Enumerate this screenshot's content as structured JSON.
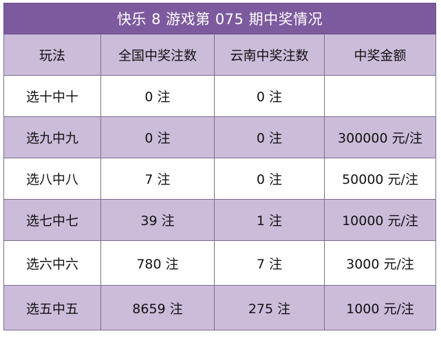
{
  "title": "快乐 8 游戏第 075 期中奖情况",
  "headers": [
    "玩法",
    "全国中奖注数",
    "云南中奖注数",
    "中奖金额"
  ],
  "rows": [
    {
      "play": "选十中十",
      "national": "0 注",
      "yunnan": "0 注",
      "amount": ""
    },
    {
      "play": "选九中九",
      "national": "0 注",
      "yunnan": "0 注",
      "amount": "300000 元/注"
    },
    {
      "play": "选八中八",
      "national": "7 注",
      "yunnan": "0 注",
      "amount": "50000 元/注"
    },
    {
      "play": "选七中七",
      "national": "39 注",
      "yunnan": "1 注",
      "amount": "10000 元/注"
    },
    {
      "play": "选六中六",
      "national": "780 注",
      "yunnan": "7 注",
      "amount": "3000 元/注"
    },
    {
      "play": "选五中五",
      "national": "8659 注",
      "yunnan": "275 注",
      "amount": "1000 元/注"
    }
  ]
}
